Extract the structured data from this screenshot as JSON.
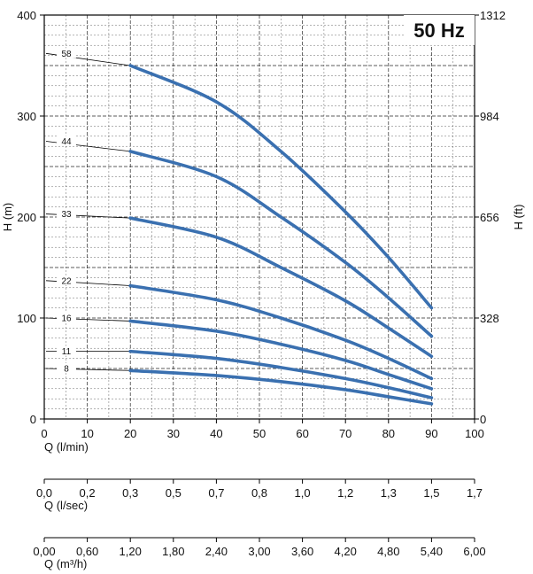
{
  "chart_data": {
    "type": "line",
    "title": "50 Hz",
    "xlabel": "Q (l/min)",
    "ylabel": "H (m)",
    "ylabel_right": "H (ft)",
    "xlim": [
      0,
      100
    ],
    "ylim": [
      0,
      400
    ],
    "x_ticks": [
      "0",
      "10",
      "20",
      "30",
      "40",
      "50",
      "60",
      "70",
      "80",
      "90",
      "100"
    ],
    "y_ticks": [
      "0",
      "100",
      "200",
      "300",
      "400"
    ],
    "y_ticks_right": [
      "0",
      "328",
      "656",
      "984",
      "1312"
    ],
    "grid": true,
    "series": [
      {
        "name": "58",
        "x": [
          20,
          40,
          55,
          70,
          80,
          90
        ],
        "values": [
          350,
          314,
          265,
          205,
          160,
          110
        ]
      },
      {
        "name": "44",
        "x": [
          20,
          40,
          55,
          70,
          80,
          90
        ],
        "values": [
          265,
          240,
          200,
          155,
          120,
          82
        ]
      },
      {
        "name": "33",
        "x": [
          20,
          40,
          55,
          70,
          80,
          90
        ],
        "values": [
          199,
          180,
          150,
          117,
          90,
          62
        ]
      },
      {
        "name": "22",
        "x": [
          20,
          40,
          55,
          70,
          80,
          90
        ],
        "values": [
          132,
          118,
          100,
          78,
          60,
          40
        ]
      },
      {
        "name": "16",
        "x": [
          20,
          40,
          55,
          70,
          80,
          90
        ],
        "values": [
          97,
          87,
          74,
          58,
          44,
          30
        ]
      },
      {
        "name": "11",
        "x": [
          20,
          40,
          55,
          70,
          80,
          90
        ],
        "values": [
          67,
          60,
          51,
          40,
          31,
          21
        ]
      },
      {
        "name": "8",
        "x": [
          20,
          40,
          55,
          70,
          80,
          90
        ],
        "values": [
          48,
          43,
          37,
          29,
          22,
          15
        ]
      }
    ],
    "label_anchor_values": {
      "58": 362,
      "44": 275,
      "33": 203,
      "22": 137,
      "16": 100,
      "11": 67,
      "8": 50
    },
    "secondary_axes": [
      {
        "label": "Q (l/sec)",
        "ticks": [
          "0,0",
          "0,2",
          "0,3",
          "0,5",
          "0,7",
          "0,8",
          "1,0",
          "1,2",
          "1,3",
          "1,5",
          "1,7"
        ]
      },
      {
        "label": "Q (m³/h)",
        "ticks": [
          "0,00",
          "0,60",
          "1,20",
          "1,80",
          "2,40",
          "3,00",
          "3,60",
          "4,20",
          "4,80",
          "5,40",
          "6,00"
        ]
      }
    ]
  },
  "colors": {
    "curve": "#3a70b0",
    "grid": "#000000"
  }
}
